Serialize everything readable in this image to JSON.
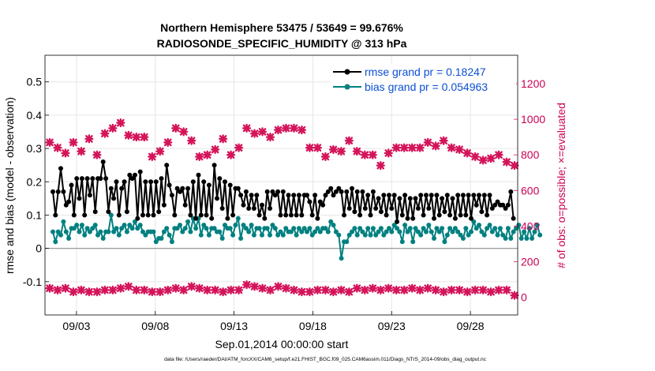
{
  "chart_data": {
    "type": "line",
    "title": "Northern Hemisphere 53475 / 53649 = 99.676%",
    "subtitle": "RADIOSONDE_SPECIFIC_HUMIDITY @ 313 hPa",
    "xlabel": "Sep.01,2014 00:00:00 start",
    "ylabel": "rmse and bias (model - observation)",
    "ylabel_right": "# of obs: o=possible; ×=evaluated",
    "footnote": "data file: /Users/raeder/DAI/ATM_forcXX/CAM6_setup/f.e21.FHIST_BGC.f09_025.CAM6assim.011/Diags_NTrS_2014-09/obs_diag_output.nc",
    "x_tick_labels": [
      "09/03",
      "09/08",
      "09/13",
      "09/18",
      "09/23",
      "09/28"
    ],
    "x_ticks_day": [
      3,
      8,
      13,
      18,
      23,
      28
    ],
    "xlim_day": [
      1.0,
      31.0
    ],
    "ylim": [
      -0.2,
      0.58
    ],
    "y_ticks": [
      -0.1,
      0,
      0.1,
      0.2,
      0.3,
      0.4,
      0.5
    ],
    "y_tick_labels": [
      "-0.1",
      "0",
      "0.1",
      "0.2",
      "0.3",
      "0.4",
      "0.5"
    ],
    "ylim_right": [
      -100,
      1360
    ],
    "y_ticks_right": [
      0,
      200,
      400,
      600,
      800,
      1000,
      1200
    ],
    "y_tick_labels_right": [
      "0",
      "200",
      "400",
      "600",
      "800",
      "1000",
      "1200"
    ],
    "grid": true,
    "legend_position": "top-right",
    "colors": {
      "rmse": "#000000",
      "bias": "#008080",
      "obs": "#d4145a",
      "zero_line": "#9a9a9a",
      "legend_text": "#0b4fd6",
      "grid": "#e6e6e6"
    },
    "series": [
      {
        "name": "rmse grand pr = 0.18247",
        "axis": "left",
        "marker": "filled-circle",
        "values": [
          0.17,
          0.1,
          0.17,
          0.24,
          0.17,
          0.13,
          0.14,
          0.19,
          0.1,
          0.21,
          0.15,
          0.21,
          0.1,
          0.21,
          0.16,
          0.21,
          0.11,
          0.21,
          0.21,
          0.26,
          0.21,
          0.11,
          0.18,
          0.15,
          0.2,
          0.1,
          0.18,
          0.2,
          0.11,
          0.22,
          0.21,
          0.22,
          0.09,
          0.23,
          0.1,
          0.2,
          0.1,
          0.2,
          0.1,
          0.2,
          0.11,
          0.21,
          0.13,
          0.25,
          0.19,
          0.16,
          0.1,
          0.18,
          0.17,
          0.18,
          0.13,
          0.18,
          0.1,
          0.2,
          0.09,
          0.22,
          0.1,
          0.2,
          0.1,
          0.19,
          0.09,
          0.25,
          0.15,
          0.21,
          0.12,
          0.2,
          0.09,
          0.19,
          0.1,
          0.18,
          0.18,
          0.16,
          0.13,
          0.17,
          0.12,
          0.16,
          0.12,
          0.16,
          0.1,
          0.13,
          0.09,
          0.17,
          0.12,
          0.17,
          0.16,
          0.17,
          0.1,
          0.17,
          0.1,
          0.16,
          0.1,
          0.16,
          0.1,
          0.16,
          0.1,
          0.16,
          0.16,
          0.14,
          0.1,
          0.16,
          0.09,
          0.14,
          0.13,
          0.16,
          0.17,
          0.18,
          0.16,
          0.17,
          0.18,
          0.17,
          0.1,
          0.17,
          0.12,
          0.18,
          0.11,
          0.17,
          0.1,
          0.17,
          0.12,
          0.16,
          0.1,
          0.17,
          0.12,
          0.15,
          0.11,
          0.16,
          0.1,
          0.16,
          0.12,
          0.16,
          0.08,
          0.15,
          0.1,
          0.16,
          0.09,
          0.15,
          0.09,
          0.15,
          0.12,
          0.16,
          0.1,
          0.16,
          0.12,
          0.16,
          0.09,
          0.16,
          0.1,
          0.15,
          0.11,
          0.16,
          0.1,
          0.15,
          0.09,
          0.16,
          0.1,
          0.16,
          0.1,
          0.16,
          0.09,
          0.16,
          0.13,
          0.16,
          0.11,
          0.16,
          0.1,
          0.16,
          0.12,
          0.13,
          0.14,
          0.13,
          0.13,
          0.12,
          0.13,
          0.17,
          0.09
        ],
        "x_day_start": 1.5,
        "x_day_step": 0.168
      },
      {
        "name": "bias grand pr = 0.054963",
        "axis": "left",
        "marker": "filled-circle",
        "values": [
          0.05,
          0.02,
          0.05,
          0.04,
          0.08,
          0.05,
          0.03,
          0.06,
          0.06,
          0.07,
          0.05,
          0.07,
          0.04,
          0.06,
          0.05,
          0.06,
          0.07,
          0.04,
          0.05,
          0.03,
          0.05,
          0.05,
          0.1,
          0.05,
          0.06,
          0.04,
          0.06,
          0.07,
          0.05,
          0.07,
          0.06,
          0.08,
          0.06,
          0.07,
          0.05,
          0.04,
          0.05,
          0.05,
          0.05,
          0.02,
          0.03,
          0.03,
          0.05,
          0.06,
          0.04,
          0.02,
          0.06,
          0.06,
          0.07,
          0.05,
          0.06,
          0.08,
          0.05,
          0.09,
          0.06,
          0.09,
          0.04,
          0.07,
          0.06,
          0.04,
          0.06,
          0.06,
          0.05,
          0.05,
          0.03,
          0.07,
          0.06,
          0.06,
          0.04,
          0.07,
          0.09,
          0.03,
          0.07,
          0.06,
          0.05,
          0.07,
          0.04,
          0.06,
          0.06,
          0.04,
          0.06,
          0.06,
          0.04,
          0.07,
          0.06,
          0.04,
          0.05,
          0.04,
          0.06,
          0.05,
          0.05,
          0.06,
          0.04,
          0.06,
          0.05,
          0.06,
          0.05,
          0.06,
          0.04,
          0.05,
          0.06,
          0.05,
          0.06,
          0.06,
          0.05,
          0.08,
          0.07,
          0.05,
          0.04,
          -0.03,
          0.02,
          0.02,
          0.04,
          0.05,
          0.06,
          0.04,
          0.06,
          0.05,
          0.04,
          0.06,
          0.04,
          0.06,
          0.04,
          0.05,
          0.06,
          0.04,
          0.05,
          0.06,
          0.05,
          0.07,
          0.06,
          0.05,
          0.02,
          0.07,
          0.05,
          0.06,
          0.02,
          0.06,
          0.05,
          0.04,
          0.06,
          0.05,
          0.07,
          0.05,
          0.03,
          0.06,
          0.05,
          0.06,
          0.02,
          0.04,
          0.06,
          0.05,
          0.06,
          0.05,
          0.04,
          0.03,
          0.06,
          0.04,
          0.05,
          0.08,
          0.06,
          0.07,
          0.05,
          0.04,
          0.06,
          0.07,
          0.05,
          0.06,
          0.04,
          0.06,
          0.04,
          0.03,
          0.06,
          0.03,
          0.05,
          0.06,
          0.07,
          0.03,
          0.05,
          0.03,
          0.06,
          0.03,
          0.05,
          0.07,
          0.04
        ],
        "x_day_start": 1.5,
        "x_day_step": 0.168
      },
      {
        "name": "possible / evaluated obs count",
        "axis": "right",
        "marker": "x",
        "x_day": [
          1.3,
          1.8,
          2.3,
          2.8,
          3.3,
          3.8,
          4.3,
          4.8,
          5.3,
          5.8,
          6.3,
          6.8,
          7.3,
          7.8,
          8.3,
          8.8,
          9.3,
          9.8,
          10.3,
          10.8,
          11.3,
          11.8,
          12.3,
          12.8,
          13.3,
          13.8,
          14.3,
          14.8,
          15.3,
          15.8,
          16.3,
          16.8,
          17.3,
          17.8,
          18.3,
          18.8,
          19.3,
          19.8,
          20.3,
          20.8,
          21.3,
          21.8,
          22.3,
          22.8,
          23.3,
          23.8,
          24.3,
          24.8,
          25.3,
          25.8,
          26.3,
          26.8,
          27.3,
          27.8,
          28.3,
          28.8,
          29.3,
          29.8,
          30.3,
          30.8
        ],
        "values_upper": [
          870,
          840,
          810,
          870,
          820,
          890,
          800,
          920,
          950,
          980,
          910,
          900,
          900,
          790,
          820,
          870,
          950,
          930,
          880,
          790,
          800,
          830,
          890,
          800,
          840,
          950,
          920,
          930,
          900,
          940,
          950,
          950,
          940,
          840,
          840,
          790,
          830,
          820,
          880,
          820,
          800,
          800,
          740,
          810,
          840,
          840,
          840,
          840,
          870,
          850,
          880,
          840,
          830,
          810,
          790,
          770,
          780,
          800,
          760,
          740
        ],
        "values_lower": [
          50,
          40,
          50,
          30,
          40,
          30,
          30,
          40,
          40,
          50,
          60,
          40,
          40,
          30,
          30,
          40,
          50,
          40,
          60,
          50,
          40,
          40,
          30,
          40,
          40,
          70,
          60,
          50,
          40,
          60,
          50,
          40,
          30,
          30,
          40,
          40,
          30,
          40,
          30,
          50,
          40,
          50,
          40,
          50,
          40,
          40,
          50,
          40,
          50,
          40,
          30,
          40,
          40,
          30,
          40,
          40,
          30,
          40,
          40,
          10
        ]
      }
    ]
  }
}
